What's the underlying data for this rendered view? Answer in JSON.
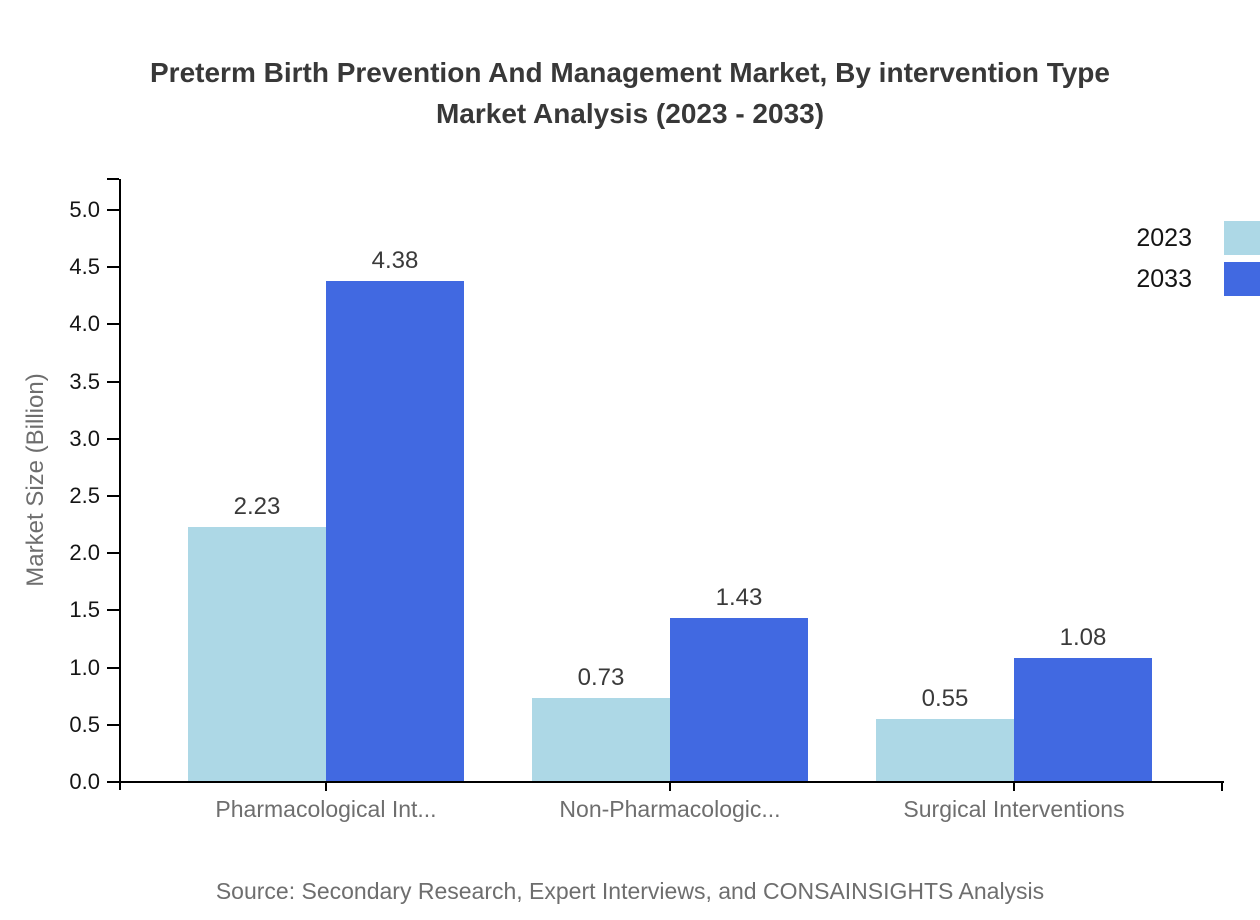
{
  "title": {
    "line1": "Preterm Birth Prevention And Management Market, By intervention Type",
    "line2": "Market Analysis (2023 - 2033)"
  },
  "source": "Source: Secondary Research, Expert Interviews, and CONSAINSIGHTS Analysis",
  "chart_data": {
    "type": "bar",
    "categories": [
      "Pharmacological Int...",
      "Non-Pharmacologic...",
      "Surgical Interventions"
    ],
    "series": [
      {
        "name": "2023",
        "color": "#add8e6",
        "values": [
          2.23,
          0.73,
          0.55
        ]
      },
      {
        "name": "2033",
        "color": "#4169e1",
        "values": [
          4.38,
          1.43,
          1.08
        ]
      }
    ],
    "ylabel": "Market Size (Billion)",
    "ylim": [
      0,
      5
    ],
    "yticks": [
      "0.0",
      "0.5",
      "1.0",
      "1.5",
      "2.0",
      "2.5",
      "3.0",
      "3.5",
      "4.0",
      "4.5",
      "5.0"
    ],
    "grid": false,
    "legend_position": "top-right",
    "value_label_decimals": 2
  },
  "colors": {
    "axis": "#000000",
    "title_text": "#383838",
    "tick_text": "#141414",
    "value_text": "#3a3a3a",
    "muted_text": "#6e6e6e",
    "series_2023": "#add8e6",
    "series_2033": "#4169e1"
  }
}
